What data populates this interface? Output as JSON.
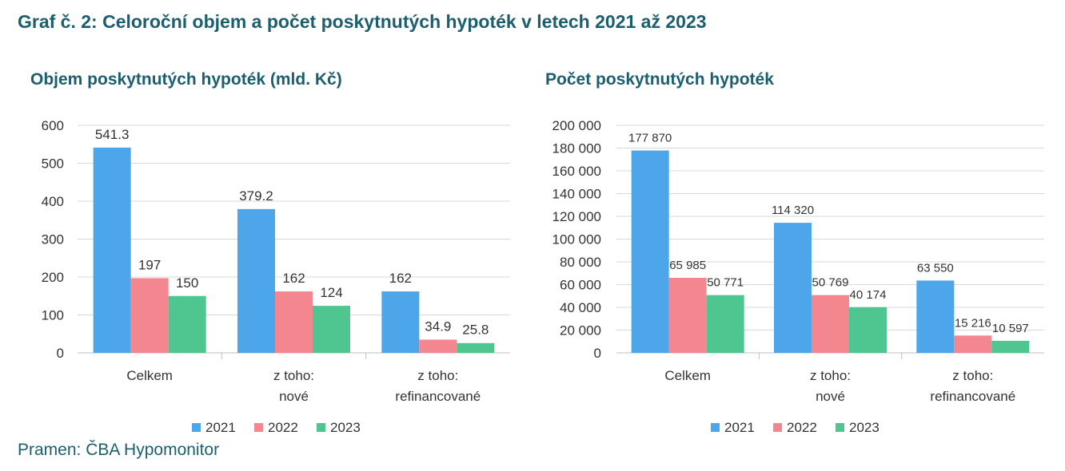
{
  "main_title": "Graf č. 2: Celoroční objem a počet poskytnutých hypoték v letech 2021 až 2023",
  "source": "Pramen: ČBA Hypomonitor",
  "colors": {
    "2021": "#4da6ea",
    "2022": "#f4868f",
    "2023": "#4fc58f",
    "title": "#1b5e6e"
  },
  "chart_data": [
    {
      "type": "bar",
      "title": "Objem poskytnutých hypoték (mld. Kč)",
      "categories": [
        [
          "Celkem"
        ],
        [
          "z toho:",
          "nové"
        ],
        [
          "z toho:",
          "refinancované"
        ]
      ],
      "series": [
        {
          "name": "2021",
          "values": [
            541.3,
            379.2,
            162
          ],
          "labels": [
            "541.3",
            "379.2",
            "162"
          ]
        },
        {
          "name": "2022",
          "values": [
            197,
            162,
            34.9
          ],
          "labels": [
            "197",
            "162",
            "34.9"
          ]
        },
        {
          "name": "2023",
          "values": [
            150,
            124,
            25.8
          ],
          "labels": [
            "150",
            "124",
            "25.8"
          ]
        }
      ],
      "ylim": [
        0,
        600
      ],
      "yticks": [
        "0",
        "100",
        "200",
        "300",
        "400",
        "500",
        "600"
      ],
      "grid": true,
      "legend": "bottom"
    },
    {
      "type": "bar",
      "title": "Počet poskytnutých hypoték",
      "categories": [
        [
          "Celkem"
        ],
        [
          "z toho:",
          "nové"
        ],
        [
          "z toho:",
          "refinancované"
        ]
      ],
      "series": [
        {
          "name": "2021",
          "values": [
            177870,
            114320,
            63550
          ],
          "labels": [
            "177 870",
            "114 320",
            "63 550"
          ]
        },
        {
          "name": "2022",
          "values": [
            65985,
            50769,
            15216
          ],
          "labels": [
            "65 985",
            "50 769",
            "15 216"
          ]
        },
        {
          "name": "2023",
          "values": [
            50771,
            40174,
            10597
          ],
          "labels": [
            "50 771",
            "40 174",
            "10 597"
          ]
        }
      ],
      "ylim": [
        0,
        200000
      ],
      "yticks": [
        "0",
        "20 000",
        "40 000",
        "60 000",
        "80 000",
        "100 000",
        "120 000",
        "140 000",
        "160 000",
        "180 000",
        "200 000"
      ],
      "grid": true,
      "legend": "bottom"
    }
  ]
}
